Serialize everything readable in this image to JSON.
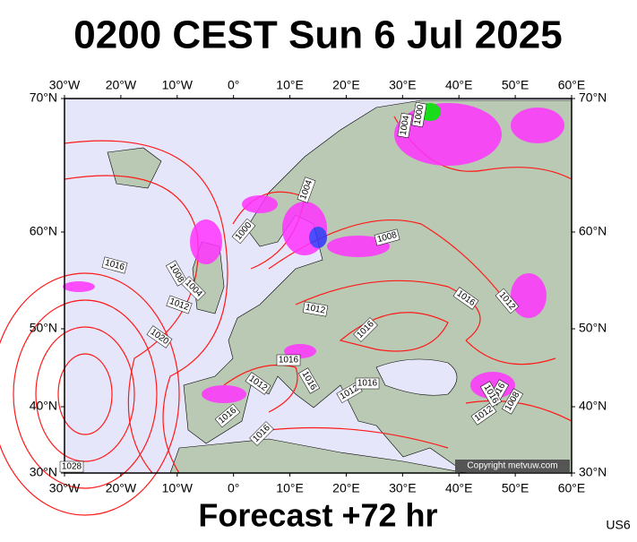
{
  "header": {
    "title": "0200 CEST Sun 6 Jul 2025"
  },
  "map": {
    "lon_labels": [
      "30°W",
      "20°W",
      "10°W",
      "0°",
      "10°E",
      "20°E",
      "30°E",
      "40°E",
      "50°E",
      "60°E"
    ],
    "lat_labels": [
      "70°N",
      "60°N",
      "50°N",
      "40°N",
      "30°N"
    ],
    "isobar_labels": [
      "1004",
      "1000",
      "1004",
      "1000",
      "1008",
      "1016",
      "1008",
      "1004",
      "1012",
      "1020",
      "1012",
      "1016",
      "1016",
      "1012",
      "1016",
      "1016",
      "1016",
      "1016",
      "1012",
      "1016",
      "1016",
      "1012",
      "1008",
      "1016",
      "1012",
      "1028"
    ],
    "copyright": "Copyright metvuw.com"
  },
  "footer": {
    "forecast": "Forecast +72 hr",
    "code": "US6"
  }
}
